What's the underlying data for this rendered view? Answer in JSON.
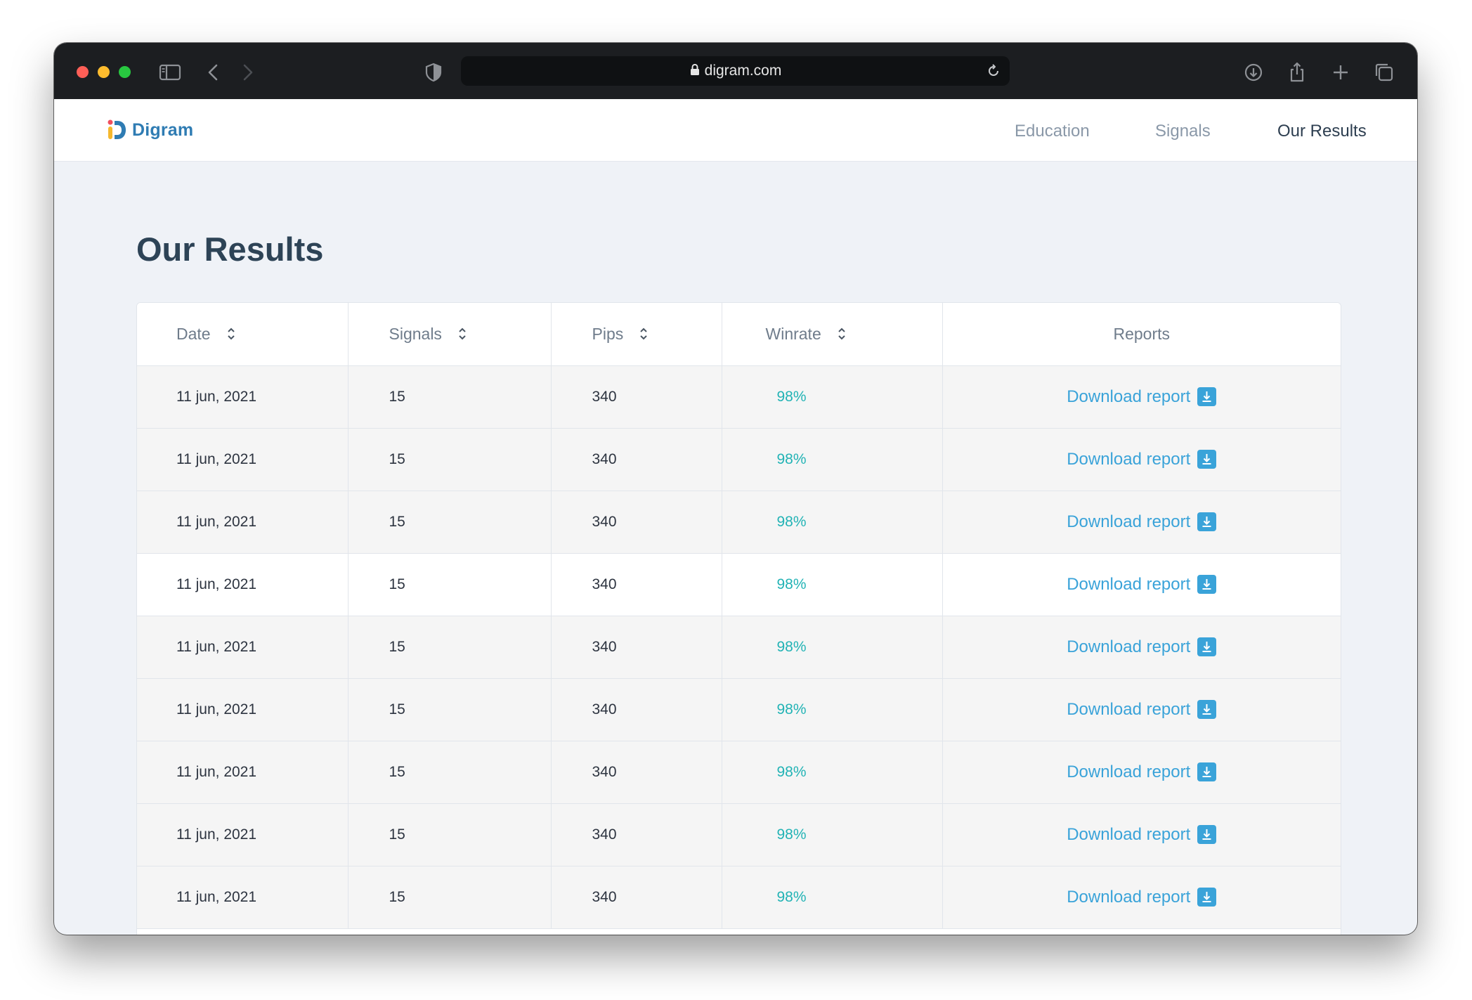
{
  "browser": {
    "url": "digram.com"
  },
  "header": {
    "logo_text": "Digram",
    "nav": [
      {
        "label": "Education",
        "active": false
      },
      {
        "label": "Signals",
        "active": false
      },
      {
        "label": "Our Results",
        "active": true
      }
    ]
  },
  "page": {
    "title": "Our Results"
  },
  "table": {
    "columns": [
      "Date",
      "Signals",
      "Pips",
      "Winrate",
      "Reports"
    ],
    "rows": [
      {
        "date": "11 jun, 2021",
        "signals": "15",
        "pips": "340",
        "winrate": "98%",
        "report": "Download report"
      },
      {
        "date": "11 jun, 2021",
        "signals": "15",
        "pips": "340",
        "winrate": "98%",
        "report": "Download report"
      },
      {
        "date": "11 jun, 2021",
        "signals": "15",
        "pips": "340",
        "winrate": "98%",
        "report": "Download report"
      },
      {
        "date": "11 jun, 2021",
        "signals": "15",
        "pips": "340",
        "winrate": "98%",
        "report": "Download report"
      },
      {
        "date": "11 jun, 2021",
        "signals": "15",
        "pips": "340",
        "winrate": "98%",
        "report": "Download report"
      },
      {
        "date": "11 jun, 2021",
        "signals": "15",
        "pips": "340",
        "winrate": "98%",
        "report": "Download report"
      },
      {
        "date": "11 jun, 2021",
        "signals": "15",
        "pips": "340",
        "winrate": "98%",
        "report": "Download report"
      },
      {
        "date": "11 jun, 2021",
        "signals": "15",
        "pips": "340",
        "winrate": "98%",
        "report": "Download report"
      },
      {
        "date": "11 jun, 2021",
        "signals": "15",
        "pips": "340",
        "winrate": "98%",
        "report": "Download report"
      }
    ]
  },
  "colors": {
    "brand": "#2f7cb3",
    "link": "#3aa3d9",
    "winrate": "#22b3b5",
    "title": "#2d4356"
  },
  "icons": [
    "sidebar-icon",
    "back-icon",
    "forward-icon",
    "shield-icon",
    "lock-icon",
    "reload-icon",
    "download-icon",
    "share-icon",
    "new-tab-icon",
    "tabs-icon",
    "sort-icon",
    "download-report-icon"
  ]
}
